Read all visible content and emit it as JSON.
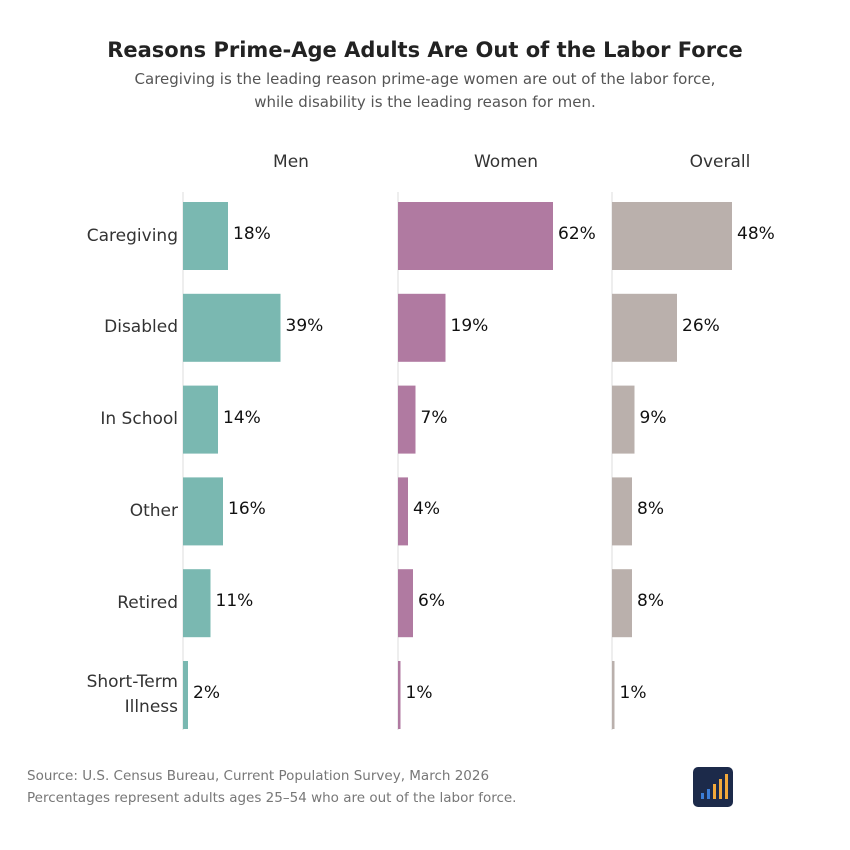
{
  "chart_data": {
    "type": "bar",
    "orientation": "horizontal",
    "title": "Reasons Prime-Age Adults Are Out of the Labor Force",
    "subtitle": "Caregiving is the leading reason prime-age women are out of the labor force, while disability is the leading reason for men.",
    "categories": [
      "Caregiving",
      "Disabled",
      "In School",
      "Other",
      "Retired",
      "Short-Term Illness"
    ],
    "series": [
      {
        "name": "Men",
        "color": "#7ab8b1",
        "values": [
          18,
          39,
          14,
          16,
          11,
          2
        ],
        "value_labels": [
          "18%",
          "39%",
          "14%",
          "16%",
          "11%",
          "2%"
        ]
      },
      {
        "name": "Women",
        "color": "#b07aa1",
        "values": [
          62,
          19,
          7,
          4,
          6,
          1
        ],
        "value_labels": [
          "62%",
          "19%",
          "7%",
          "4%",
          "6%",
          "1%"
        ]
      },
      {
        "name": "Overall",
        "color": "#bab0ac",
        "values": [
          48,
          26,
          9,
          8,
          8,
          1
        ],
        "value_labels": [
          "48%",
          "26%",
          "9%",
          "8%",
          "8%",
          "1%"
        ]
      }
    ],
    "source": "Source: U.S. Census Bureau, Current Population Survey, March 2026",
    "note": "Percentages represent adults ages 25–54 who are out of the labor force."
  }
}
